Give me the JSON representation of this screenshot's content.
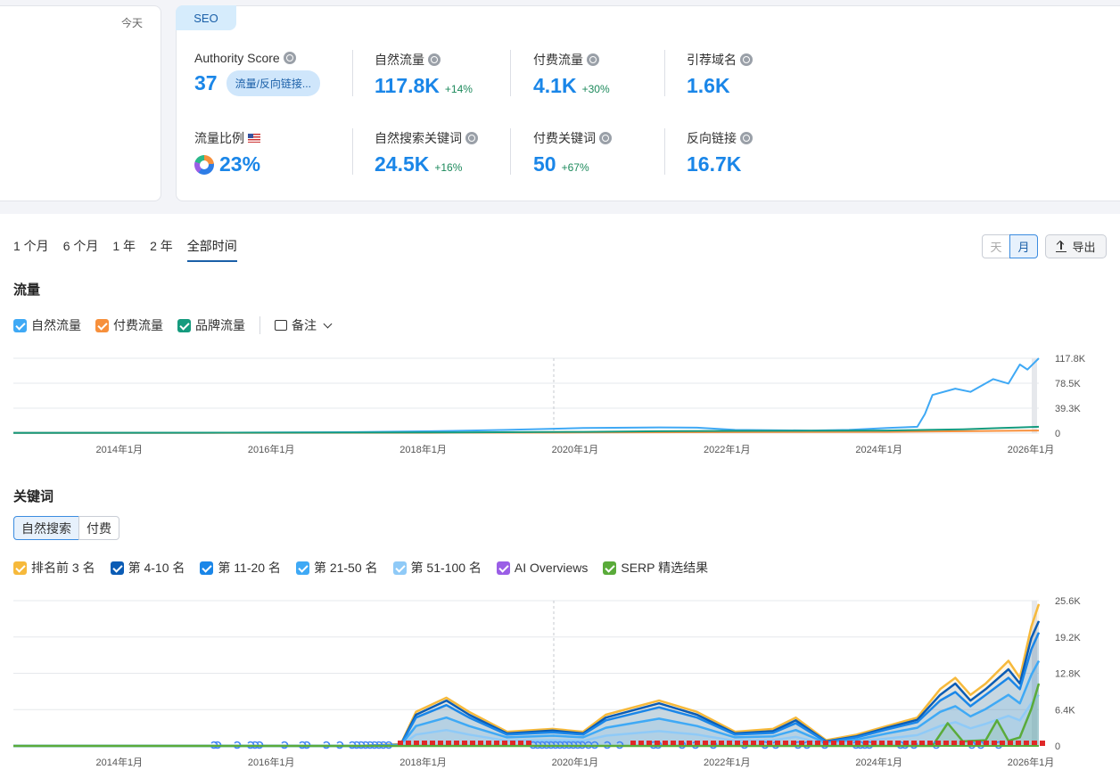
{
  "left_card": {
    "today_label": "今天"
  },
  "seo": {
    "tab_label": "SEO",
    "authority": {
      "label": "Authority Score",
      "value": "37",
      "pill": "流量/反向链接..."
    },
    "organic_traffic": {
      "label": "自然流量",
      "value": "117.8K",
      "change": "+14%"
    },
    "paid_traffic": {
      "label": "付费流量",
      "value": "4.1K",
      "change": "+30%"
    },
    "ref_domains": {
      "label": "引荐域名",
      "value": "1.6K"
    },
    "traffic_share": {
      "label": "流量比例",
      "value": "23%"
    },
    "organic_keywords": {
      "label": "自然搜索关键词",
      "value": "24.5K",
      "change": "+16%"
    },
    "paid_keywords": {
      "label": "付费关键词",
      "value": "50",
      "change": "+67%"
    },
    "backlinks": {
      "label": "反向链接",
      "value": "16.7K"
    }
  },
  "period_tabs": [
    "1 个月",
    "6 个月",
    "1 年",
    "2 年",
    "全部时间"
  ],
  "active_period": "全部时间",
  "granularity": {
    "day": "天",
    "month": "月",
    "active": "月"
  },
  "export_label": "导出",
  "traffic_section": {
    "title": "流量",
    "legend": [
      {
        "label": "自然流量",
        "color": "#3fa9f5"
      },
      {
        "label": "付费流量",
        "color": "#f7903c"
      },
      {
        "label": "品牌流量",
        "color": "#159b7e"
      }
    ],
    "notes_label": "备注"
  },
  "keywords_section": {
    "title": "关键词",
    "toggle": {
      "organic": "自然搜索",
      "paid": "付费"
    },
    "legend": [
      {
        "label": "排名前 3 名",
        "color": "#f6b93b"
      },
      {
        "label": "第 4-10 名",
        "color": "#0b5cb5"
      },
      {
        "label": "第 11-20 名",
        "color": "#1a86e8"
      },
      {
        "label": "第 21-50 名",
        "color": "#3fa9f5"
      },
      {
        "label": "第 51-100 名",
        "color": "#8fcaf7"
      },
      {
        "label": "AI Overviews",
        "color": "#9a5ee6"
      },
      {
        "label": "SERP 精选结果",
        "color": "#5aab3a"
      }
    ]
  },
  "chart_data": [
    {
      "type": "line",
      "title": "流量",
      "x_ticks": [
        "2014年1月",
        "2016年1月",
        "2018年1月",
        "2020年1月",
        "2022年1月",
        "2024年1月",
        "2026年1月"
      ],
      "y_ticks": [
        "117.8K",
        "78.5K",
        "39.3K",
        "0"
      ],
      "ylim": [
        0,
        117800
      ],
      "x_range": [
        2012.5,
        2026.0
      ],
      "series": [
        {
          "name": "自然流量",
          "color": "#3fa9f5",
          "points": [
            [
              2012.5,
              500
            ],
            [
              2015,
              500
            ],
            [
              2017,
              1500
            ],
            [
              2018,
              3000
            ],
            [
              2019,
              5000
            ],
            [
              2020,
              8000
            ],
            [
              2021,
              9000
            ],
            [
              2021.5,
              8500
            ],
            [
              2022,
              5000
            ],
            [
              2023,
              4000
            ],
            [
              2023.5,
              5000
            ],
            [
              2024,
              8000
            ],
            [
              2024.4,
              10000
            ],
            [
              2024.5,
              30000
            ],
            [
              2024.6,
              60000
            ],
            [
              2024.9,
              70000
            ],
            [
              2025.1,
              65000
            ],
            [
              2025.4,
              85000
            ],
            [
              2025.6,
              78000
            ],
            [
              2025.75,
              108000
            ],
            [
              2025.85,
              100000
            ],
            [
              2026,
              117800
            ]
          ]
        },
        {
          "name": "付费流量",
          "color": "#f7903c",
          "points": [
            [
              2012.5,
              300
            ],
            [
              2018,
              500
            ],
            [
              2020,
              1000
            ],
            [
              2022,
              1500
            ],
            [
              2024,
              2000
            ],
            [
              2025,
              3000
            ],
            [
              2026,
              4100
            ]
          ]
        },
        {
          "name": "品牌流量",
          "color": "#159b7e",
          "points": [
            [
              2012.5,
              400
            ],
            [
              2018,
              1000
            ],
            [
              2020,
              2000
            ],
            [
              2021,
              3000
            ],
            [
              2022,
              3500
            ],
            [
              2024,
              4000
            ],
            [
              2025,
              6000
            ],
            [
              2025.5,
              8000
            ],
            [
              2026,
              10000
            ]
          ]
        }
      ]
    },
    {
      "type": "area",
      "title": "关键词",
      "x_ticks": [
        "2014年1月",
        "2016年1月",
        "2018年1月",
        "2020年1月",
        "2022年1月",
        "2024年1月",
        "2026年1月"
      ],
      "y_ticks": [
        "25.6K",
        "19.2K",
        "12.8K",
        "6.4K",
        "0"
      ],
      "ylim": [
        0,
        25600
      ],
      "x_range": [
        2012.5,
        2026.0
      ],
      "series": [
        {
          "name": "排名前 3 名",
          "color": "#f6b93b",
          "points": [
            [
              2012.5,
              0
            ],
            [
              2017,
              0
            ],
            [
              2017.6,
              300
            ],
            [
              2017.8,
              6000
            ],
            [
              2018.2,
              8500
            ],
            [
              2018.5,
              6000
            ],
            [
              2019,
              2500
            ],
            [
              2019.6,
              3000
            ],
            [
              2020,
              2500
            ],
            [
              2020.3,
              5500
            ],
            [
              2021,
              8000
            ],
            [
              2021.5,
              6000
            ],
            [
              2022,
              2500
            ],
            [
              2022.5,
              3000
            ],
            [
              2022.8,
              5000
            ],
            [
              2023.2,
              1000
            ],
            [
              2023.6,
              2000
            ],
            [
              2024,
              3500
            ],
            [
              2024.4,
              5000
            ],
            [
              2024.7,
              10000
            ],
            [
              2024.9,
              12000
            ],
            [
              2025.1,
              9000
            ],
            [
              2025.3,
              11000
            ],
            [
              2025.6,
              15000
            ],
            [
              2025.75,
              12000
            ],
            [
              2025.9,
              21000
            ],
            [
              2026,
              25000
            ]
          ]
        },
        {
          "name": "第 4-10 名",
          "color": "#0b5cb5",
          "points": [
            [
              2012.5,
              0
            ],
            [
              2017,
              0
            ],
            [
              2017.6,
              200
            ],
            [
              2017.8,
              5500
            ],
            [
              2018.2,
              8000
            ],
            [
              2018.5,
              5500
            ],
            [
              2019,
              2200
            ],
            [
              2019.6,
              2700
            ],
            [
              2020,
              2200
            ],
            [
              2020.3,
              5000
            ],
            [
              2021,
              7500
            ],
            [
              2021.5,
              5500
            ],
            [
              2022,
              2200
            ],
            [
              2022.5,
              2600
            ],
            [
              2022.8,
              4500
            ],
            [
              2023.2,
              800
            ],
            [
              2023.6,
              1700
            ],
            [
              2024,
              3200
            ],
            [
              2024.4,
              4600
            ],
            [
              2024.7,
              9000
            ],
            [
              2024.9,
              11000
            ],
            [
              2025.1,
              8000
            ],
            [
              2025.3,
              10000
            ],
            [
              2025.6,
              13500
            ],
            [
              2025.75,
              11000
            ],
            [
              2025.9,
              19000
            ],
            [
              2026,
              22000
            ]
          ]
        },
        {
          "name": "第 11-20 名",
          "color": "#1a86e8",
          "points": [
            [
              2012.5,
              0
            ],
            [
              2017,
              0
            ],
            [
              2017.6,
              150
            ],
            [
              2017.8,
              5000
            ],
            [
              2018.2,
              7200
            ],
            [
              2018.5,
              5000
            ],
            [
              2019,
              2000
            ],
            [
              2019.6,
              2400
            ],
            [
              2020,
              2000
            ],
            [
              2020.3,
              4500
            ],
            [
              2021,
              6800
            ],
            [
              2021.5,
              5000
            ],
            [
              2022,
              2000
            ],
            [
              2022.5,
              2300
            ],
            [
              2022.8,
              4000
            ],
            [
              2023.2,
              700
            ],
            [
              2023.6,
              1500
            ],
            [
              2024,
              2900
            ],
            [
              2024.4,
              4200
            ],
            [
              2024.7,
              8000
            ],
            [
              2024.9,
              9500
            ],
            [
              2025.1,
              7000
            ],
            [
              2025.3,
              9000
            ],
            [
              2025.6,
              12000
            ],
            [
              2025.75,
              10000
            ],
            [
              2025.9,
              17000
            ],
            [
              2026,
              20000
            ]
          ]
        },
        {
          "name": "第 21-50 名",
          "color": "#3fa9f5",
          "points": [
            [
              2012.5,
              0
            ],
            [
              2017,
              0
            ],
            [
              2017.6,
              100
            ],
            [
              2017.8,
              3500
            ],
            [
              2018.2,
              5000
            ],
            [
              2018.5,
              3500
            ],
            [
              2019,
              1500
            ],
            [
              2019.6,
              1800
            ],
            [
              2020,
              1500
            ],
            [
              2020.3,
              3200
            ],
            [
              2021,
              4800
            ],
            [
              2021.5,
              3500
            ],
            [
              2022,
              1500
            ],
            [
              2022.5,
              1700
            ],
            [
              2022.8,
              2800
            ],
            [
              2023.2,
              500
            ],
            [
              2023.6,
              1100
            ],
            [
              2024,
              2200
            ],
            [
              2024.4,
              3200
            ],
            [
              2024.7,
              6000
            ],
            [
              2024.9,
              7000
            ],
            [
              2025.1,
              5200
            ],
            [
              2025.3,
              6500
            ],
            [
              2025.6,
              9000
            ],
            [
              2025.75,
              7500
            ],
            [
              2025.9,
              12500
            ],
            [
              2026,
              15000
            ]
          ]
        },
        {
          "name": "第 51-100 名",
          "color": "#8fcaf7",
          "points": [
            [
              2012.5,
              0
            ],
            [
              2017,
              0
            ],
            [
              2017.6,
              50
            ],
            [
              2017.8,
              2000
            ],
            [
              2018.2,
              2800
            ],
            [
              2018.5,
              2000
            ],
            [
              2019,
              900
            ],
            [
              2019.6,
              1000
            ],
            [
              2020,
              900
            ],
            [
              2020.3,
              1800
            ],
            [
              2021,
              2600
            ],
            [
              2021.5,
              2000
            ],
            [
              2022,
              900
            ],
            [
              2022.5,
              1000
            ],
            [
              2022.8,
              1600
            ],
            [
              2023.2,
              300
            ],
            [
              2023.6,
              700
            ],
            [
              2024,
              1300
            ],
            [
              2024.4,
              1900
            ],
            [
              2024.7,
              3500
            ],
            [
              2024.9,
              4200
            ],
            [
              2025.1,
              3100
            ],
            [
              2025.3,
              3900
            ],
            [
              2025.6,
              5300
            ],
            [
              2025.75,
              4500
            ],
            [
              2025.9,
              7500
            ],
            [
              2026,
              9000
            ]
          ]
        },
        {
          "name": "SERP 精选结果",
          "color": "#5aab3a",
          "points": [
            [
              2012.5,
              0
            ],
            [
              2024.6,
              0
            ],
            [
              2024.8,
              4000
            ],
            [
              2025.0,
              800
            ],
            [
              2025.3,
              1000
            ],
            [
              2025.45,
              4500
            ],
            [
              2025.6,
              900
            ],
            [
              2025.75,
              1500
            ],
            [
              2025.9,
              6500
            ],
            [
              2026,
              11000
            ]
          ]
        }
      ]
    }
  ]
}
